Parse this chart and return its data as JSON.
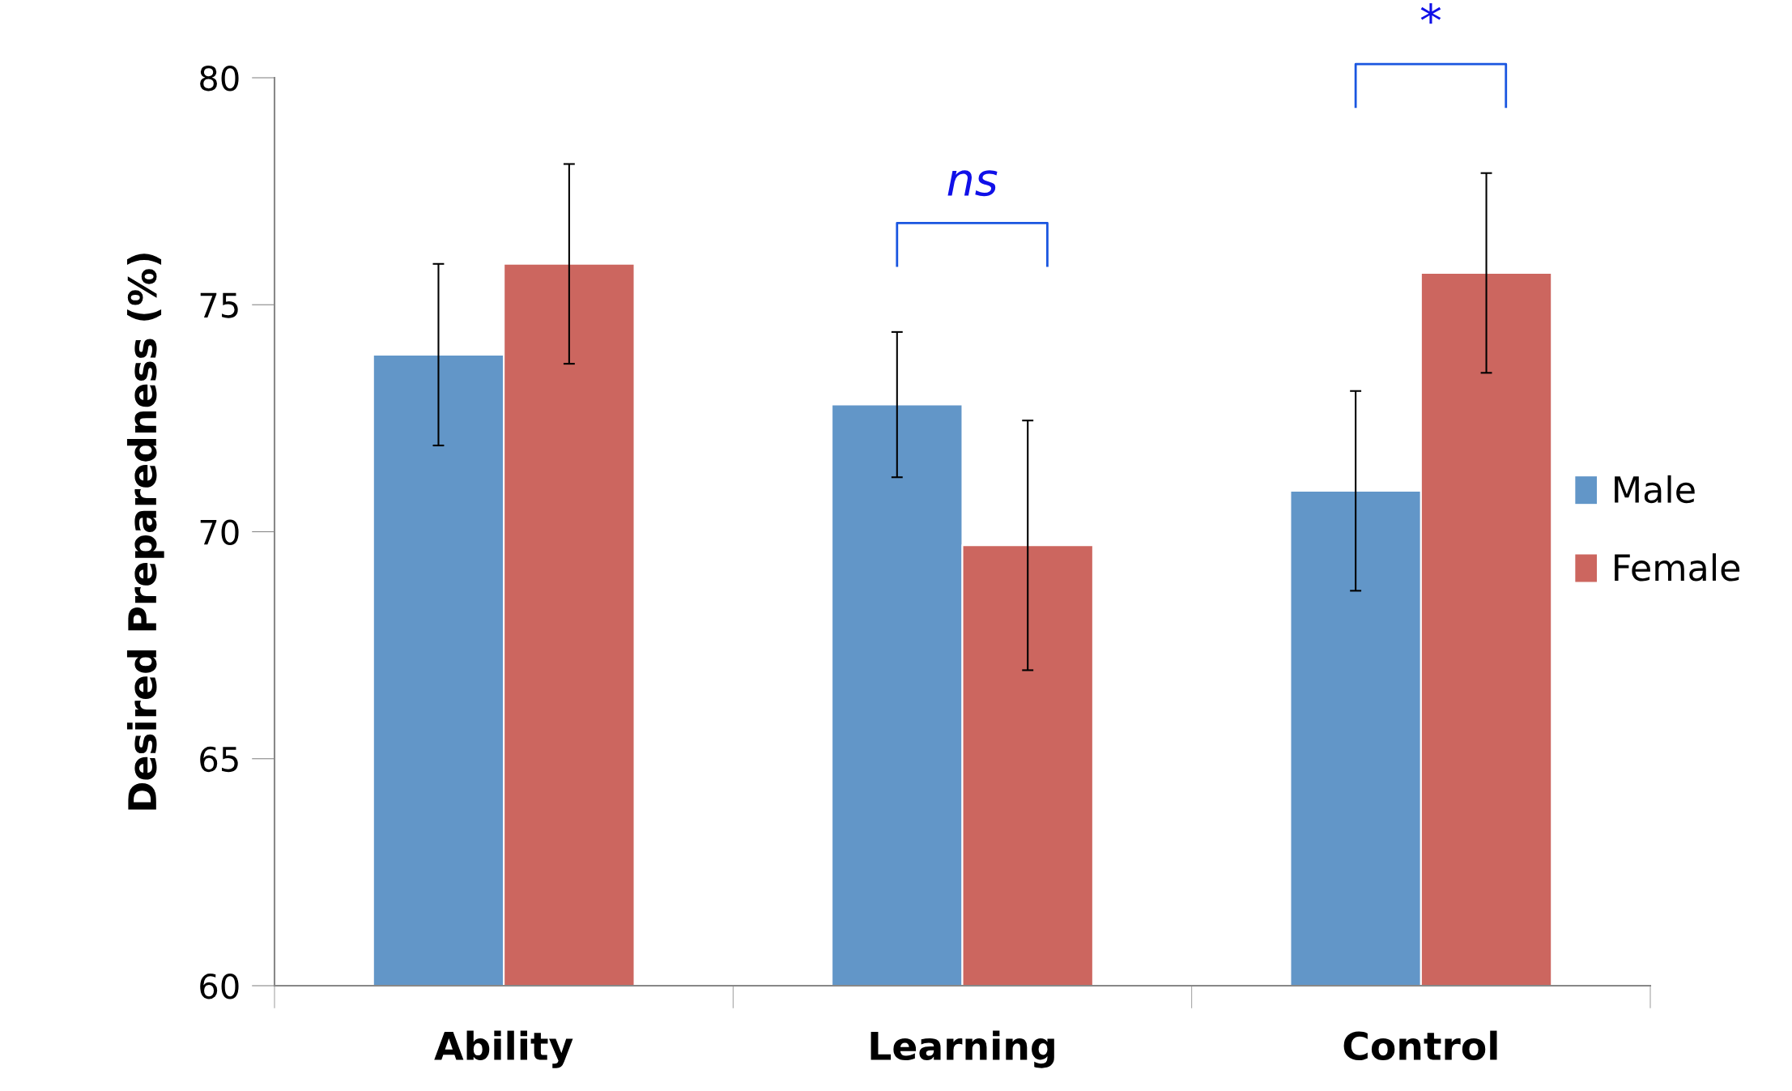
{
  "chart_data": {
    "type": "bar",
    "ylabel": "Desired Preparedness (%)",
    "categories": [
      "Ability",
      "Learning",
      "Control"
    ],
    "series": [
      {
        "name": "Male",
        "color": "#6296c8",
        "values": [
          73.9,
          72.8,
          70.9
        ],
        "errors": [
          2.0,
          1.6,
          2.2
        ]
      },
      {
        "name": "Female",
        "color": "#cc665f",
        "values": [
          75.9,
          69.7,
          75.7
        ],
        "errors": [
          2.2,
          2.75,
          2.2
        ]
      }
    ],
    "ylim": [
      60,
      80
    ],
    "yticks": [
      60,
      65,
      70,
      75,
      80
    ],
    "grid": false,
    "legend": "right",
    "annotations": [
      "ns",
      "*"
    ]
  }
}
